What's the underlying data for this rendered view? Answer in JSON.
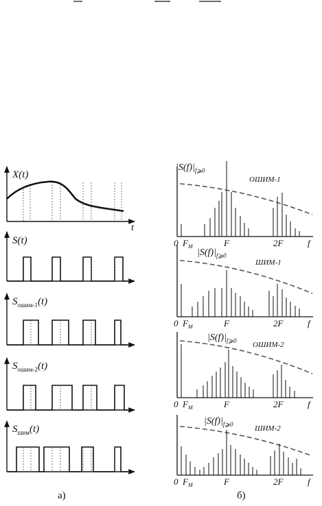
{
  "left_panel": {
    "caption": "а)",
    "axis_label": "t",
    "plots": [
      {
        "symbol": "X(t)",
        "sym_main": "X",
        "sym_sub": "",
        "sym_arg": "(t)"
      },
      {
        "symbol": "S(t)",
        "sym_main": "S",
        "sym_sub": "",
        "sym_arg": "(t)"
      },
      {
        "symbol": "Sошим-1(t)",
        "sym_main": "S",
        "sym_sub": "ошим-1",
        "sym_arg": "(t)"
      },
      {
        "symbol": "Sошим-2(t)",
        "sym_main": "S",
        "sym_sub": "ошим-2",
        "sym_arg": "(t)"
      },
      {
        "symbol": "Sшим(t)",
        "sym_main": "S",
        "sym_sub": "шим",
        "sym_arg": "(t)"
      }
    ]
  },
  "right_panel": {
    "caption": "б)",
    "axis_label": "f",
    "spectra": [
      {
        "title": "ОШИМ-1",
        "magnitude_label": "|S(f)|",
        "magnitude_sub": "f⩾0"
      },
      {
        "title": "ШИМ-1",
        "magnitude_label": "|S(f)|",
        "magnitude_sub": "f⩾0"
      },
      {
        "title": "ОШИМ-2",
        "magnitude_label": "|S(f)|",
        "magnitude_sub": "f⩾0"
      },
      {
        "title": "ШИМ-2",
        "magnitude_label": "|S(f)|",
        "magnitude_sub": "f⩾0"
      }
    ],
    "ticks": {
      "zero": "0",
      "fm_main": "F",
      "fm_sub": "M",
      "f": "F",
      "two_f": "2F"
    }
  }
}
